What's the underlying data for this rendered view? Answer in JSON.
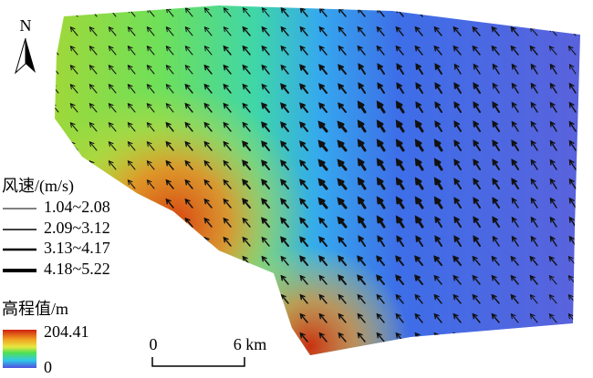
{
  "north_arrow": {
    "label": "N"
  },
  "wind_legend": {
    "title": "风速/(m/s)",
    "items": [
      {
        "label": "1.04~2.08"
      },
      {
        "label": "2.09~3.12"
      },
      {
        "label": "3.13~4.17"
      },
      {
        "label": "4.18~5.22"
      }
    ]
  },
  "elevation_legend": {
    "title": "高程值/m",
    "max_label": "204.41",
    "min_label": "0"
  },
  "scale_bar": {
    "labels": [
      "0",
      "6 km"
    ]
  }
}
